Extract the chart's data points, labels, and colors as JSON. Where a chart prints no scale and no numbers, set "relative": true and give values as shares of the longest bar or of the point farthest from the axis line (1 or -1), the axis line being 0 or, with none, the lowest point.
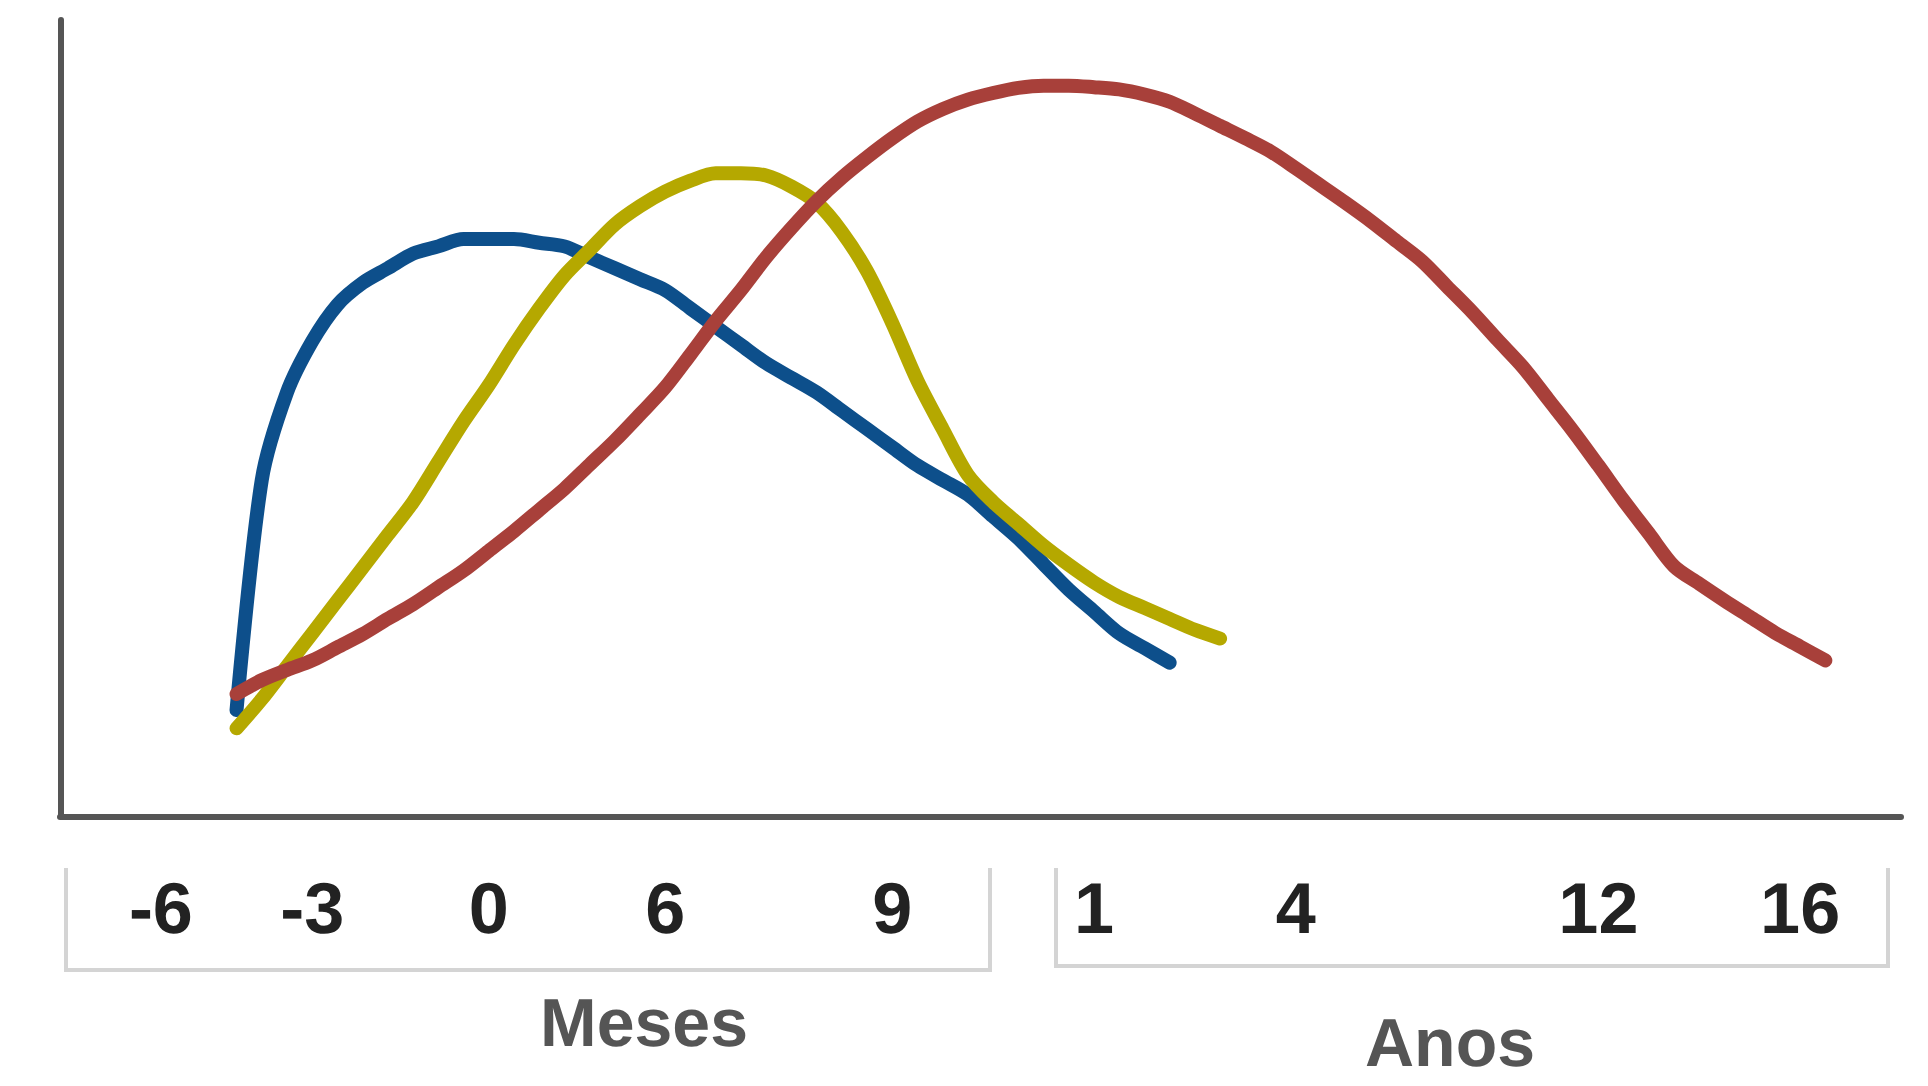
{
  "chart_data": {
    "type": "line",
    "relative": true,
    "grid": false,
    "marker": "none",
    "line_style": "solid",
    "categories": [
      null,
      null,
      null,
      null,
      "-6",
      null,
      null,
      null,
      null,
      null,
      "-3",
      null,
      null,
      null,
      null,
      null,
      null,
      "0",
      null,
      null,
      null,
      null,
      null,
      null,
      "6",
      null,
      null,
      null,
      null,
      null,
      null,
      null,
      null,
      "9",
      null,
      null,
      null,
      null,
      null,
      null,
      null,
      "1",
      null,
      null,
      null,
      null,
      null,
      null,
      null,
      "4",
      null,
      null,
      null,
      null,
      null,
      null,
      null,
      null,
      null,
      null,
      null,
      "12",
      null,
      null,
      null,
      null,
      null,
      null,
      null,
      "16",
      null,
      null,
      null,
      null
    ],
    "annotations": [
      "Meses",
      "Anos"
    ],
    "series": [
      {
        "color": "#0d4f8b",
        "values": [
          null,
          null,
          null,
          null,
          null,
          null,
          null,
          0.145,
          0.46,
          0.58,
          0.65,
          0.7,
          0.73,
          0.75,
          0.77,
          0.78,
          0.79,
          0.79,
          0.79,
          0.785,
          0.78,
          0.765,
          0.75,
          0.735,
          0.72,
          0.695,
          0.67,
          0.645,
          0.62,
          0.6,
          0.58,
          0.555,
          0.53,
          0.505,
          0.48,
          0.46,
          0.44,
          0.41,
          0.38,
          0.345,
          0.31,
          0.28,
          0.25,
          0.23,
          0.21,
          null,
          null,
          null,
          null,
          null,
          null,
          null,
          null,
          null,
          null,
          null,
          null,
          null,
          null,
          null,
          null,
          null,
          null,
          null,
          null,
          null,
          null,
          null,
          null,
          null,
          null,
          null,
          null,
          null
        ]
      },
      {
        "color": "#b5a800",
        "values": [
          null,
          null,
          null,
          null,
          null,
          null,
          null,
          0.12,
          0.16,
          0.205,
          0.25,
          0.295,
          0.34,
          0.385,
          0.43,
          0.485,
          0.54,
          0.59,
          0.645,
          0.695,
          0.74,
          0.775,
          0.81,
          0.835,
          0.855,
          0.87,
          0.88,
          0.88,
          0.877,
          0.862,
          0.84,
          0.8,
          0.746,
          0.675,
          0.596,
          0.53,
          0.467,
          0.43,
          0.4,
          0.37,
          0.344,
          0.32,
          0.3,
          0.285,
          0.27,
          0.255,
          0.243,
          null,
          null,
          null,
          null,
          null,
          null,
          null,
          null,
          null,
          null,
          null,
          null,
          null,
          null,
          null,
          null,
          null,
          null,
          null,
          null,
          null,
          null,
          null,
          null,
          null,
          null,
          null
        ]
      },
      {
        "color": "#a8403a",
        "values": [
          null,
          null,
          null,
          null,
          null,
          null,
          null,
          0.167,
          0.186,
          0.2,
          0.213,
          0.231,
          0.249,
          0.27,
          0.29,
          0.313,
          0.336,
          0.363,
          0.39,
          0.419,
          0.448,
          0.481,
          0.514,
          0.55,
          0.587,
          0.632,
          0.678,
          0.72,
          0.765,
          0.805,
          0.842,
          0.874,
          0.902,
          0.928,
          0.951,
          0.968,
          0.981,
          0.99,
          0.997,
          1,
          1,
          0.998,
          0.995,
          0.988,
          0.978,
          0.962,
          0.945,
          0.928,
          0.91,
          0.887,
          0.863,
          0.839,
          0.814,
          0.787,
          0.76,
          0.725,
          0.69,
          0.652,
          0.615,
          0.571,
          0.527,
          0.48,
          0.432,
          0.387,
          0.342,
          0.318,
          0.295,
          0.273,
          0.251,
          0.232,
          0.213,
          null,
          null,
          null
        ]
      }
    ]
  }
}
